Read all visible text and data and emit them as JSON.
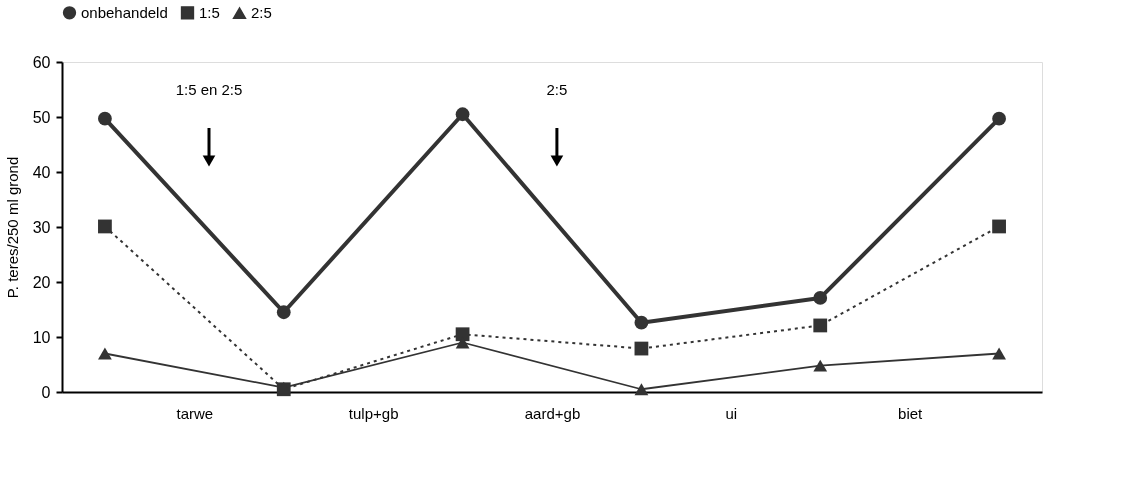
{
  "chart_data": {
    "type": "line",
    "categories": [
      null,
      "tarwe",
      null,
      "tulp+gb",
      null,
      "aard+gb",
      null,
      "ui",
      null,
      "biet",
      null
    ],
    "series": [
      {
        "name": "onbehandeld",
        "color": "#333333",
        "values": [
          49.7,
          null,
          14.5,
          null,
          50.5,
          null,
          12.6,
          null,
          17.1,
          null,
          49.7
        ],
        "marker": "circle",
        "line_style": "solid"
      },
      {
        "name": "1:5",
        "color": "#333333",
        "values": [
          30.1,
          null,
          0.5,
          null,
          10.5,
          null,
          7.9,
          null,
          12.1,
          null,
          30.1
        ],
        "marker": "square",
        "line_style": "dotted"
      },
      {
        "name": "2:5",
        "color": "#333333",
        "values": [
          7,
          null,
          0.8,
          null,
          9,
          null,
          0.5,
          null,
          4.8,
          null,
          7
        ],
        "marker": "triangle",
        "line_style": "solid"
      }
    ],
    "ylabel": "P. teres/250 ml grond",
    "ylim": [
      0,
      60
    ],
    "yticks": [
      0,
      10,
      20,
      30,
      40,
      50,
      60
    ],
    "annotations": [
      "1:5 en 2:5",
      "2:5"
    ],
    "legend": "top",
    "grid": false
  }
}
